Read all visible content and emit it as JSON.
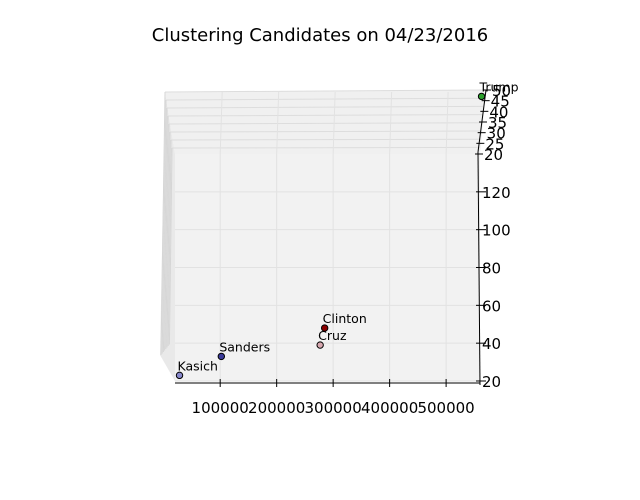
{
  "chart_data": {
    "type": "scatter",
    "projection": "3d",
    "title": "Clustering Candidates on 04/23/2016",
    "xlabel": "",
    "ylabel": "",
    "zlabel": "",
    "x_ticks": [
      "100000",
      "200000",
      "300000",
      "400000",
      "500000"
    ],
    "y_ticks": [
      "20",
      "40",
      "60",
      "80",
      "100",
      "120"
    ],
    "z_ticks": [
      "20",
      "25",
      "30",
      "35",
      "40",
      "45",
      "50"
    ],
    "xlim": [
      20000,
      560000
    ],
    "ylim": [
      20,
      140
    ],
    "zlim": [
      20,
      50
    ],
    "grid": true,
    "legend": "none",
    "points": [
      {
        "label": "Trump",
        "x": 550000,
        "y": 140,
        "z": 47,
        "color": "#2ca02c"
      },
      {
        "label": "Clinton",
        "x": 285000,
        "y": 48,
        "z": 20,
        "color": "#8b0000"
      },
      {
        "label": "Cruz",
        "x": 277000,
        "y": 39,
        "z": 20,
        "color": "#d8a8b0"
      },
      {
        "label": "Sanders",
        "x": 102000,
        "y": 33,
        "z": 20,
        "color": "#3a3a9a"
      },
      {
        "label": "Kasich",
        "x": 28000,
        "y": 23,
        "z": 20,
        "color": "#8888cc"
      }
    ]
  }
}
